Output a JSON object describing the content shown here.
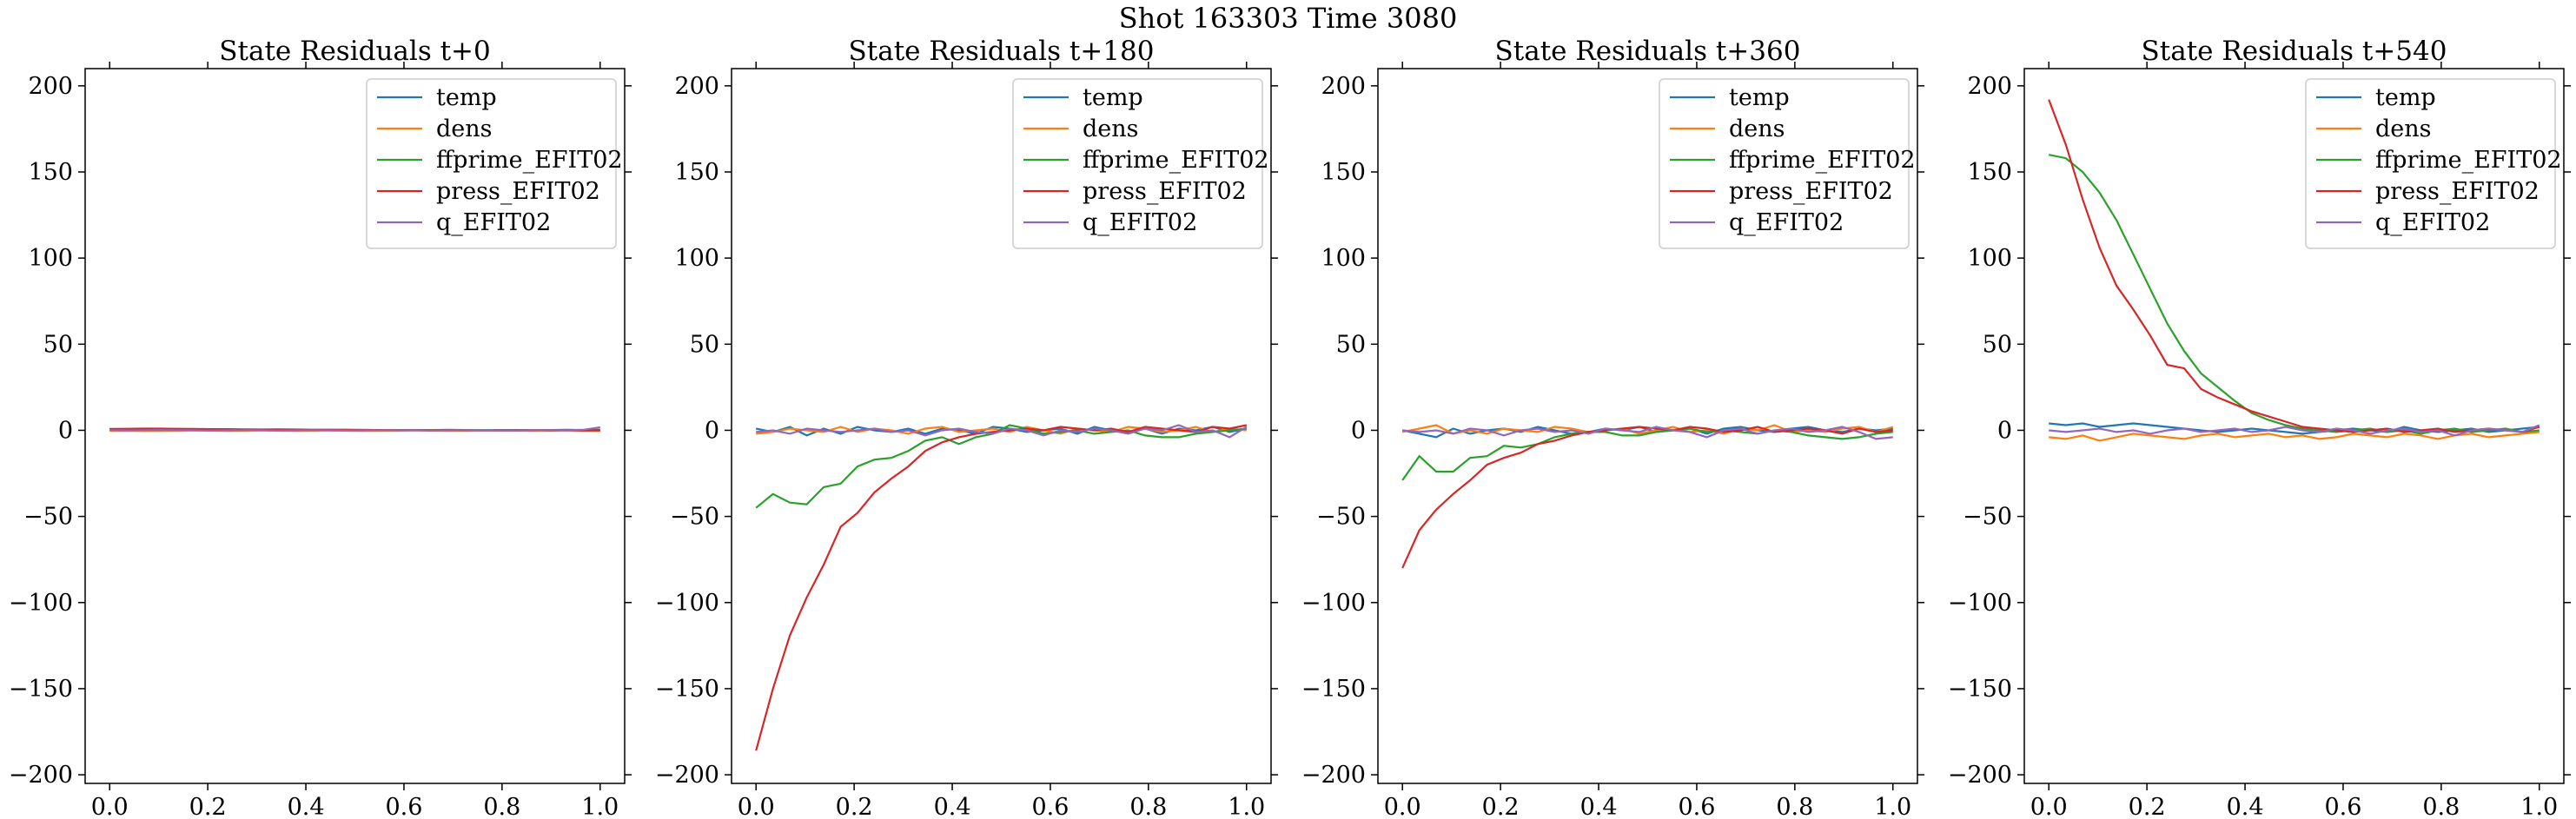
{
  "figure": {
    "suptitle": "Shot 163303   Time 3080"
  },
  "colors": {
    "temp": "#1f77b4",
    "dens": "#ff7f0e",
    "ffprime_EFIT02": "#2ca02c",
    "press_EFIT02": "#d62728",
    "q_EFIT02": "#9467bd"
  },
  "chart_data": [
    {
      "type": "line",
      "title": "State Residuals t+0",
      "xlim": [
        -0.05,
        1.05
      ],
      "ylim": [
        -205,
        210
      ],
      "xticks": [
        "0.0",
        "0.2",
        "0.4",
        "0.6",
        "0.8",
        "1.0"
      ],
      "yticks": [
        "−200",
        "−150",
        "−100",
        "−50",
        "0",
        "50",
        "100",
        "150",
        "200"
      ],
      "legend": "upper right",
      "x": [
        0.0,
        0.0345,
        0.069,
        0.1034,
        0.1379,
        0.1724,
        0.2069,
        0.2414,
        0.2759,
        0.3103,
        0.3448,
        0.3793,
        0.4138,
        0.4483,
        0.4828,
        0.5172,
        0.5517,
        0.5862,
        0.6207,
        0.6552,
        0.6897,
        0.7241,
        0.7586,
        0.7931,
        0.8276,
        0.8621,
        0.8966,
        0.931,
        0.9655,
        1.0
      ],
      "series": [
        {
          "name": "temp",
          "values": [
            0.3,
            0.2,
            0.4,
            0.3,
            0.2,
            0.3,
            0.2,
            0.1,
            0.2,
            0.3,
            0.2,
            0.2,
            0.1,
            0.2,
            0.3,
            0.2,
            0.1,
            0.2,
            0.1,
            0.2,
            0.3,
            0.2,
            0.1,
            0.2,
            0.2,
            0.1,
            0.2,
            0.3,
            0.2,
            0.4
          ]
        },
        {
          "name": "dens",
          "values": [
            -0.3,
            -0.2,
            -0.4,
            -0.3,
            -0.2,
            -0.1,
            -0.2,
            -0.3,
            -0.2,
            -0.1,
            -0.2,
            -0.3,
            -0.2,
            -0.1,
            -0.2,
            -0.3,
            -0.2,
            -0.2,
            -0.1,
            -0.2,
            -0.3,
            -0.2,
            -0.1,
            -0.2,
            -0.2,
            -0.3,
            -0.2,
            -0.1,
            -0.2,
            -0.3
          ]
        },
        {
          "name": "ffprime_EFIT02",
          "values": [
            0.5,
            0.6,
            0.5,
            0.4,
            0.5,
            0.4,
            0.3,
            0.4,
            0.3,
            0.3,
            0.4,
            0.3,
            0.2,
            0.3,
            0.2,
            0.3,
            0.2,
            0.2,
            0.1,
            0.2,
            0.1,
            0.2,
            0.1,
            0.1,
            0.0,
            0.1,
            0.0,
            0.1,
            0.0,
            0.1
          ]
        },
        {
          "name": "press_EFIT02",
          "values": [
            0.8,
            0.9,
            1.0,
            1.0,
            0.9,
            0.8,
            0.7,
            0.7,
            0.6,
            0.5,
            0.6,
            0.5,
            0.4,
            0.4,
            0.3,
            0.2,
            0.2,
            0.1,
            0.1,
            0.0,
            0.1,
            0.0,
            -0.1,
            0.0,
            0.0,
            0.1,
            0.0,
            0.0,
            -0.1,
            0.0
          ]
        },
        {
          "name": "q_EFIT02",
          "values": [
            0.1,
            0.0,
            0.1,
            0.2,
            0.1,
            0.0,
            -0.1,
            0.0,
            0.1,
            0.0,
            -0.1,
            0.0,
            0.1,
            0.0,
            -0.1,
            0.0,
            0.1,
            0.0,
            0.0,
            -0.1,
            0.0,
            0.1,
            0.0,
            0.0,
            -0.1,
            0.0,
            0.1,
            0.0,
            0.3,
            1.8
          ]
        }
      ]
    },
    {
      "type": "line",
      "title": "State Residuals t+180",
      "xlim": [
        -0.05,
        1.05
      ],
      "ylim": [
        -205,
        210
      ],
      "xticks": [
        "0.0",
        "0.2",
        "0.4",
        "0.6",
        "0.8",
        "1.0"
      ],
      "yticks": [
        "−200",
        "−150",
        "−100",
        "−50",
        "0",
        "50",
        "100",
        "150",
        "200"
      ],
      "legend": "upper right",
      "x": [
        0.0,
        0.0345,
        0.069,
        0.1034,
        0.1379,
        0.1724,
        0.2069,
        0.2414,
        0.2759,
        0.3103,
        0.3448,
        0.3793,
        0.4138,
        0.4483,
        0.4828,
        0.5172,
        0.5517,
        0.5862,
        0.6207,
        0.6552,
        0.6897,
        0.7241,
        0.7586,
        0.7931,
        0.8276,
        0.8621,
        0.8966,
        0.931,
        0.9655,
        1.0
      ],
      "series": [
        {
          "name": "temp",
          "values": [
            1,
            -1,
            2,
            -3,
            1,
            -2,
            2,
            0,
            -1,
            1,
            -2,
            1,
            0,
            -2,
            2,
            1,
            -1,
            0,
            1,
            -2,
            2,
            0,
            -1,
            1,
            -2,
            1,
            0,
            2,
            -1,
            1
          ]
        },
        {
          "name": "dens",
          "values": [
            -2,
            -1,
            1,
            0,
            -1,
            2,
            -1,
            1,
            0,
            -2,
            1,
            2,
            -1,
            0,
            1,
            -1,
            2,
            0,
            -2,
            1,
            0,
            -1,
            2,
            1,
            -1,
            0,
            2,
            -1,
            1,
            0
          ]
        },
        {
          "name": "ffprime_EFIT02",
          "values": [
            -45,
            -37,
            -42,
            -43,
            -33,
            -31,
            -21,
            -17,
            -16,
            -12,
            -6,
            -4,
            -8,
            -4,
            -2,
            3,
            1,
            -2,
            -1,
            0,
            -2,
            -1,
            0,
            -3,
            -4,
            -4,
            -2,
            -1,
            0,
            1
          ]
        },
        {
          "name": "press_EFIT02",
          "values": [
            -186,
            -150,
            -119,
            -97,
            -78,
            -56,
            -48,
            -36,
            -28,
            -21,
            -12,
            -7,
            -4,
            -2,
            -1,
            0,
            1,
            0,
            2,
            1,
            0,
            1,
            -1,
            2,
            1,
            0,
            -1,
            2,
            1,
            3
          ]
        },
        {
          "name": "q_EFIT02",
          "values": [
            -1,
            0,
            -2,
            1,
            0,
            -1,
            0,
            1,
            -1,
            0,
            -3,
            0,
            1,
            -1,
            -2,
            1,
            0,
            -3,
            0,
            -1,
            1,
            0,
            -2,
            1,
            0,
            3,
            -1,
            0,
            -4,
            2
          ]
        }
      ]
    },
    {
      "type": "line",
      "title": "State Residuals t+360",
      "xlim": [
        -0.05,
        1.05
      ],
      "ylim": [
        -205,
        210
      ],
      "xticks": [
        "0.0",
        "0.2",
        "0.4",
        "0.6",
        "0.8",
        "1.0"
      ],
      "yticks": [
        "−200",
        "−150",
        "−100",
        "−50",
        "0",
        "50",
        "100",
        "150",
        "200"
      ],
      "legend": "upper right",
      "x": [
        0.0,
        0.0345,
        0.069,
        0.1034,
        0.1379,
        0.1724,
        0.2069,
        0.2414,
        0.2759,
        0.3103,
        0.3448,
        0.3793,
        0.4138,
        0.4483,
        0.4828,
        0.5172,
        0.5517,
        0.5862,
        0.6207,
        0.6552,
        0.6897,
        0.7241,
        0.7586,
        0.7931,
        0.8276,
        0.8621,
        0.8966,
        0.931,
        0.9655,
        1.0
      ],
      "series": [
        {
          "name": "temp",
          "values": [
            0,
            -2,
            -4,
            1,
            -2,
            0,
            1,
            -1,
            2,
            0,
            -2,
            -1,
            1,
            0,
            2,
            -1,
            0,
            1,
            -2,
            1,
            2,
            0,
            -1,
            1,
            2,
            0,
            -1,
            1,
            0,
            1
          ]
        },
        {
          "name": "dens",
          "values": [
            -1,
            1,
            3,
            -2,
            0,
            -2,
            1,
            0,
            -1,
            2,
            1,
            -1,
            0,
            1,
            -2,
            0,
            2,
            -1,
            0,
            -2,
            1,
            0,
            3,
            -1,
            0,
            -1,
            1,
            2,
            -1,
            2
          ]
        },
        {
          "name": "ffprime_EFIT02",
          "values": [
            -29,
            -15,
            -24,
            -24,
            -16,
            -15,
            -9,
            -10,
            -8,
            -4,
            -2,
            -1,
            -1,
            -3,
            -3,
            -1,
            0,
            1,
            -1,
            0,
            -1,
            -2,
            0,
            -1,
            -3,
            -4,
            -5,
            -4,
            -2,
            -1
          ]
        },
        {
          "name": "press_EFIT02",
          "values": [
            -80,
            -58,
            -46,
            -37,
            -29,
            -20,
            -16,
            -13,
            -8,
            -6,
            -3,
            -1,
            0,
            1,
            2,
            1,
            0,
            2,
            1,
            -1,
            0,
            2,
            -1,
            0,
            1,
            0,
            -2,
            1,
            -1,
            0
          ]
        },
        {
          "name": "q_EFIT02",
          "values": [
            0,
            -1,
            0,
            -2,
            1,
            0,
            -3,
            0,
            1,
            -1,
            0,
            -2,
            1,
            0,
            -1,
            2,
            0,
            -1,
            -4,
            0,
            1,
            -2,
            0,
            1,
            -1,
            0,
            2,
            -1,
            -5,
            -4
          ]
        }
      ]
    },
    {
      "type": "line",
      "title": "State Residuals t+540",
      "xlim": [
        -0.05,
        1.05
      ],
      "ylim": [
        -205,
        210
      ],
      "xticks": [
        "0.0",
        "0.2",
        "0.4",
        "0.6",
        "0.8",
        "1.0"
      ],
      "yticks": [
        "−200",
        "−150",
        "−100",
        "−50",
        "0",
        "50",
        "100",
        "150",
        "200"
      ],
      "legend": "upper right",
      "x": [
        0.0,
        0.0345,
        0.069,
        0.1034,
        0.1379,
        0.1724,
        0.2069,
        0.2414,
        0.2759,
        0.3103,
        0.3448,
        0.3793,
        0.4138,
        0.4483,
        0.4828,
        0.5172,
        0.5517,
        0.5862,
        0.6207,
        0.6552,
        0.6897,
        0.7241,
        0.7586,
        0.7931,
        0.8276,
        0.8621,
        0.8966,
        0.931,
        0.9655,
        1.0
      ],
      "series": [
        {
          "name": "temp",
          "values": [
            4,
            3,
            4,
            2,
            3,
            4,
            3,
            2,
            1,
            0,
            -1,
            0,
            1,
            0,
            -1,
            -2,
            -1,
            0,
            1,
            0,
            -1,
            2,
            0,
            -1,
            0,
            1,
            -1,
            0,
            1,
            2
          ]
        },
        {
          "name": "dens",
          "values": [
            -4,
            -5,
            -3,
            -6,
            -4,
            -2,
            -3,
            -4,
            -5,
            -3,
            -2,
            -4,
            -3,
            -2,
            -4,
            -3,
            -5,
            -4,
            -2,
            -3,
            -4,
            -2,
            -3,
            -5,
            -3,
            -2,
            -4,
            -3,
            -2,
            -1
          ]
        },
        {
          "name": "ffprime_EFIT02",
          "values": [
            160,
            158,
            150,
            138,
            122,
            102,
            82,
            62,
            46,
            33,
            25,
            17,
            10,
            6,
            3,
            1,
            0,
            -1,
            0,
            1,
            -1,
            0,
            -2,
            0,
            1,
            -1,
            0,
            1,
            -1,
            0
          ]
        },
        {
          "name": "press_EFIT02",
          "values": [
            192,
            166,
            134,
            106,
            84,
            70,
            55,
            38,
            36,
            24,
            19,
            15,
            11,
            8,
            5,
            2,
            1,
            0,
            -1,
            0,
            1,
            -1,
            0,
            1,
            -1,
            0,
            1,
            0,
            -1,
            2
          ]
        },
        {
          "name": "q_EFIT02",
          "values": [
            0,
            -1,
            0,
            1,
            -1,
            0,
            -2,
            0,
            1,
            -1,
            0,
            1,
            -1,
            0,
            2,
            0,
            -1,
            1,
            0,
            -2,
            0,
            1,
            -1,
            0,
            -3,
            0,
            1,
            0,
            -1,
            3
          ]
        }
      ]
    }
  ]
}
